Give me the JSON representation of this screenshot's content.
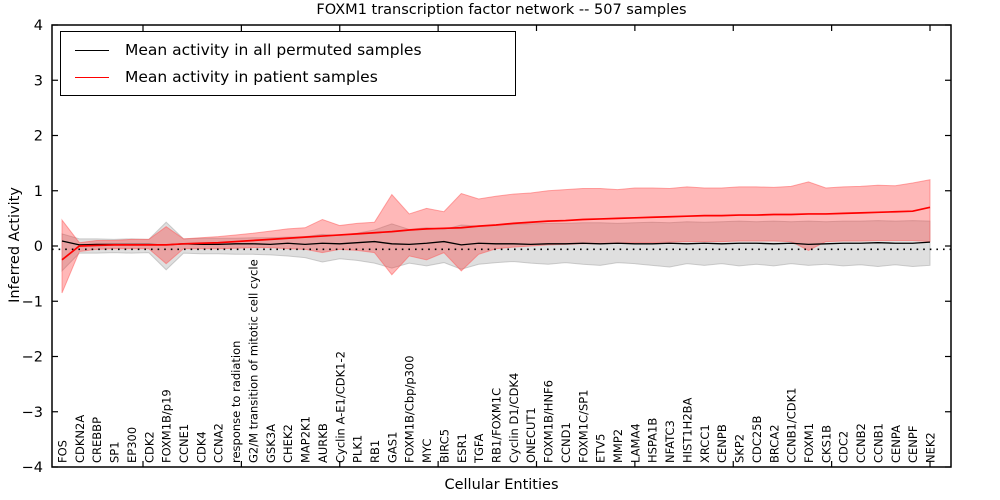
{
  "title": "FOXM1 transcription factor network -- 507 samples",
  "axes": {
    "x_label": "Cellular Entities",
    "y_label": "Inferred Activity"
  },
  "legend": {
    "items": [
      {
        "label": "Mean activity in all permuted samples",
        "color": "#000000"
      },
      {
        "label": "Mean activity in patient samples",
        "color": "#ff0000"
      }
    ]
  },
  "chart_data": {
    "type": "line",
    "title": "FOXM1 transcription factor network -- 507 samples",
    "xlabel": "Cellular Entities",
    "ylabel": "Inferred Activity",
    "ylim": [
      -4,
      4
    ],
    "yticks": [
      -4,
      -3,
      -2,
      -1,
      0,
      1,
      2,
      3,
      4
    ],
    "grid": false,
    "legend_position": "upper left",
    "zero_reference_dotted_y": -0.06,
    "categories": [
      "FOS",
      "CDKN2A",
      "CREBBP",
      "SP1",
      "EP300",
      "CDK2",
      "FOXM1B/p19",
      "CCNE1",
      "CDK4",
      "CCNA2",
      "response to radiation",
      "G2/M transition of mitotic cell cycle",
      "GSK3A",
      "CHEK2",
      "MAP2K1",
      "AURKB",
      "Cyclin A-E1/CDK1-2",
      "PLK1",
      "RB1",
      "GAS1",
      "FOXM1B/Cbp/p300",
      "MYC",
      "BIRC5",
      "ESR1",
      "TGFA",
      "RB1/FOXM1C",
      "Cyclin D1/CDK4",
      "ONECUT1",
      "FOXM1B/HNF6",
      "CCND1",
      "FOXM1C/SP1",
      "ETV5",
      "MMP2",
      "LAMA4",
      "HSPA1B",
      "NFATC3",
      "HIST1H2BA",
      "XRCC1",
      "CENPB",
      "SKP2",
      "CDC25B",
      "BRCA2",
      "CCNB1/CDK1",
      "FOXM1",
      "CKS1B",
      "CDC2",
      "CCNB2",
      "CCNB1",
      "CENPA",
      "CENPF",
      "NEK2"
    ],
    "series": [
      {
        "name": "Mean activity in all permuted samples",
        "color": "#000000",
        "values": [
          0.09,
          0.02,
          0.03,
          0.03,
          0.03,
          0.03,
          0.02,
          0.04,
          0.03,
          0.03,
          0.04,
          0.04,
          0.03,
          0.05,
          0.03,
          0.05,
          0.04,
          0.06,
          0.08,
          0.04,
          0.03,
          0.05,
          0.08,
          0.02,
          0.05,
          0.04,
          0.04,
          0.03,
          0.04,
          0.04,
          0.05,
          0.04,
          0.05,
          0.04,
          0.04,
          0.05,
          0.04,
          0.05,
          0.04,
          0.05,
          0.05,
          0.04,
          0.05,
          0.03,
          0.04,
          0.05,
          0.05,
          0.06,
          0.05,
          0.05,
          0.07
        ]
      },
      {
        "name": "Mean activity in patient samples",
        "color": "#ff0000",
        "values": [
          -0.25,
          0.0,
          0.01,
          0.02,
          0.02,
          0.02,
          0.02,
          0.04,
          0.05,
          0.06,
          0.08,
          0.1,
          0.12,
          0.14,
          0.16,
          0.18,
          0.2,
          0.22,
          0.24,
          0.26,
          0.29,
          0.31,
          0.32,
          0.33,
          0.36,
          0.38,
          0.41,
          0.43,
          0.45,
          0.46,
          0.48,
          0.49,
          0.5,
          0.51,
          0.52,
          0.53,
          0.54,
          0.55,
          0.55,
          0.56,
          0.56,
          0.57,
          0.57,
          0.58,
          0.58,
          0.59,
          0.6,
          0.61,
          0.62,
          0.63,
          0.7
        ]
      }
    ],
    "bands": [
      {
        "name": "permuted samples range",
        "fill": "#8c8c8c",
        "fill_opacity": 0.28,
        "edge": "#a8a8a8",
        "upper": [
          0.22,
          0.13,
          0.13,
          0.12,
          0.13,
          0.12,
          0.43,
          0.13,
          0.14,
          0.14,
          0.14,
          0.15,
          0.15,
          0.16,
          0.17,
          0.21,
          0.19,
          0.23,
          0.29,
          0.4,
          0.3,
          0.33,
          0.3,
          0.38,
          0.36,
          0.38,
          0.39,
          0.4,
          0.41,
          0.41,
          0.42,
          0.42,
          0.41,
          0.42,
          0.43,
          0.42,
          0.44,
          0.43,
          0.44,
          0.45,
          0.44,
          0.45,
          0.44,
          0.45,
          0.44,
          0.45,
          0.45,
          0.46,
          0.45,
          0.46,
          0.45
        ],
        "lower": [
          -0.45,
          -0.13,
          -0.13,
          -0.12,
          -0.13,
          -0.12,
          -0.43,
          -0.13,
          -0.14,
          -0.14,
          -0.15,
          -0.15,
          -0.16,
          -0.18,
          -0.21,
          -0.29,
          -0.23,
          -0.26,
          -0.31,
          -0.4,
          -0.31,
          -0.36,
          -0.3,
          -0.42,
          -0.33,
          -0.3,
          -0.28,
          -0.31,
          -0.33,
          -0.3,
          -0.33,
          -0.35,
          -0.3,
          -0.32,
          -0.35,
          -0.38,
          -0.32,
          -0.35,
          -0.32,
          -0.36,
          -0.33,
          -0.36,
          -0.32,
          -0.35,
          -0.33,
          -0.36,
          -0.34,
          -0.37,
          -0.34,
          -0.37,
          -0.35
        ]
      },
      {
        "name": "patient samples range",
        "fill": "#ff2828",
        "fill_opacity": 0.33,
        "edge": "#ff6060",
        "upper": [
          0.47,
          0.06,
          0.1,
          0.1,
          0.12,
          0.12,
          0.35,
          0.13,
          0.15,
          0.17,
          0.2,
          0.23,
          0.27,
          0.31,
          0.33,
          0.48,
          0.37,
          0.41,
          0.43,
          0.93,
          0.58,
          0.68,
          0.62,
          0.95,
          0.85,
          0.9,
          0.94,
          0.96,
          1.0,
          1.02,
          1.04,
          1.04,
          1.02,
          1.05,
          1.05,
          1.04,
          1.07,
          1.05,
          1.05,
          1.07,
          1.07,
          1.06,
          1.08,
          1.16,
          1.05,
          1.07,
          1.08,
          1.1,
          1.09,
          1.14,
          1.2
        ],
        "lower": [
          -0.85,
          -0.1,
          -0.06,
          -0.05,
          -0.05,
          -0.05,
          -0.32,
          -0.05,
          -0.05,
          -0.05,
          -0.04,
          -0.03,
          -0.03,
          -0.05,
          -0.06,
          -0.12,
          -0.06,
          -0.08,
          -0.12,
          -0.52,
          -0.18,
          -0.25,
          -0.12,
          -0.45,
          -0.15,
          -0.05,
          -0.02,
          0.0,
          0.02,
          0.03,
          0.04,
          0.04,
          0.05,
          0.06,
          0.06,
          0.07,
          0.08,
          0.08,
          0.08,
          0.09,
          0.09,
          0.09,
          0.08,
          -0.08,
          0.08,
          0.09,
          0.09,
          0.1,
          0.1,
          0.1,
          0.08
        ]
      }
    ]
  }
}
